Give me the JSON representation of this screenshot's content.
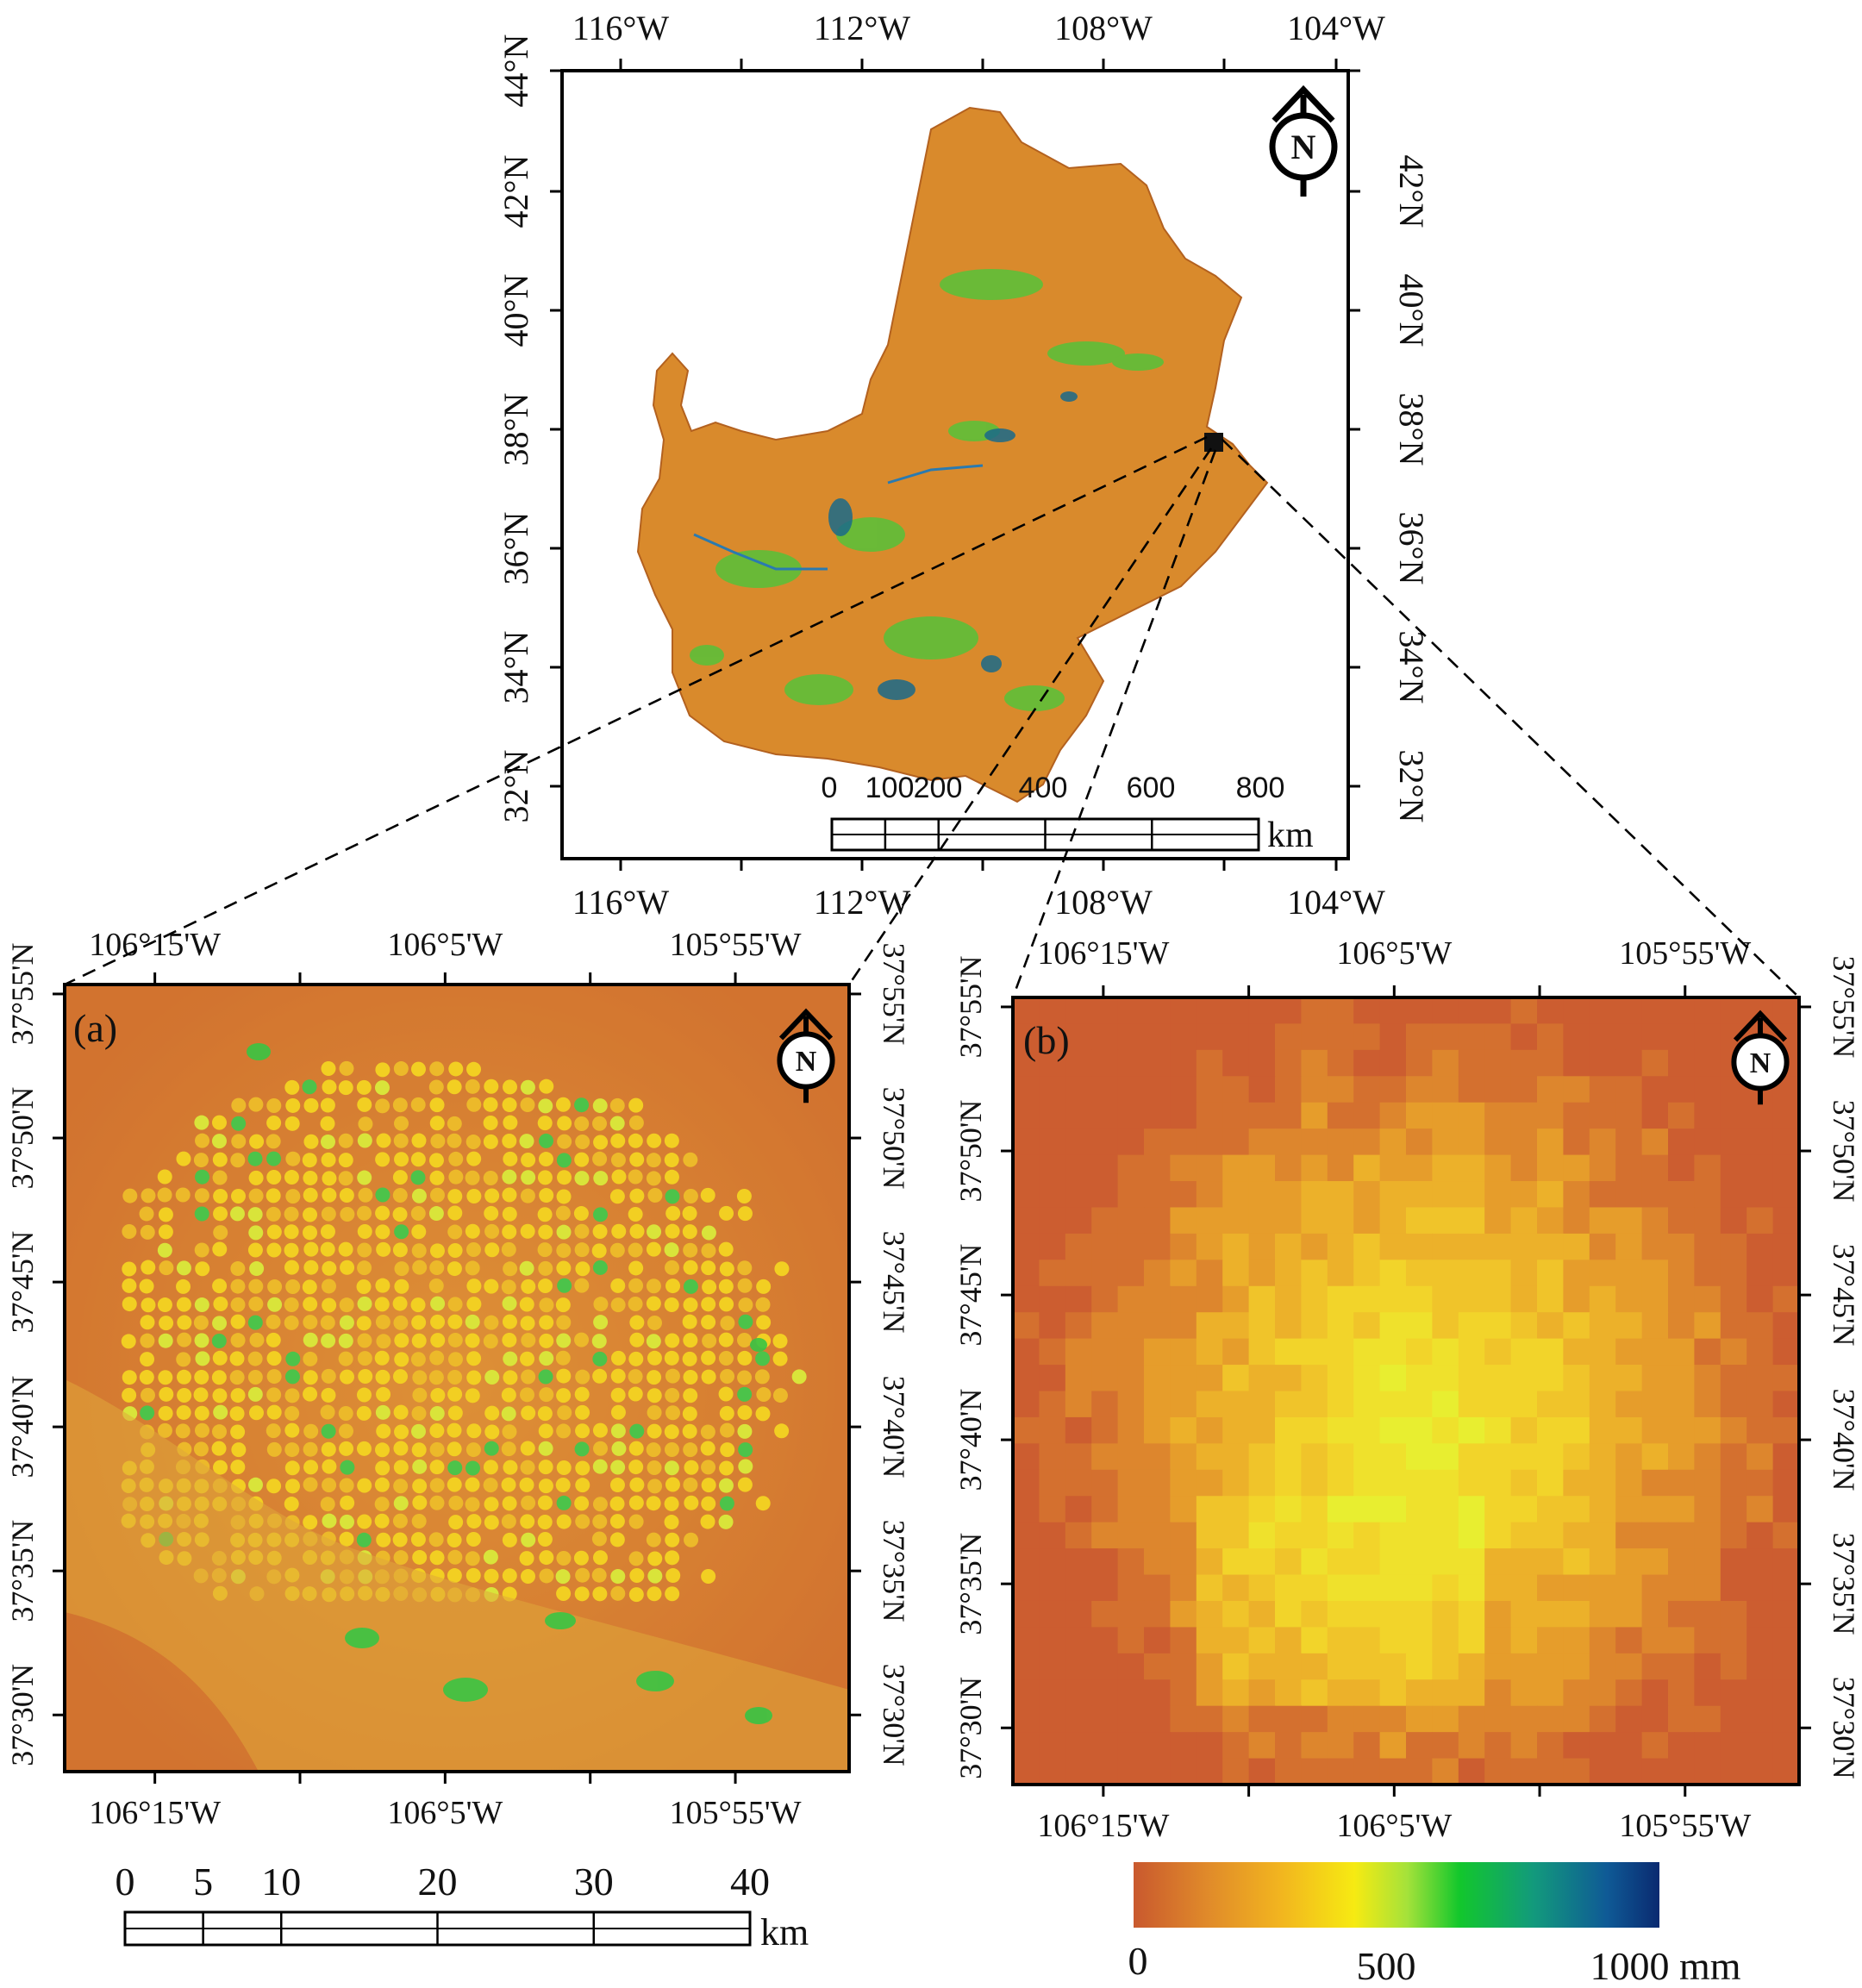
{
  "main_map": {
    "lon_labels": [
      "116°W",
      "112°W",
      "108°W",
      "104°W"
    ],
    "lat_labels": [
      "44°N",
      "42°N",
      "40°N",
      "38°N",
      "36°N",
      "34°N",
      "32°N"
    ],
    "north_letter": "N",
    "scalebar": {
      "ticks": [
        "0",
        "100",
        "200",
        "400",
        "600",
        "800"
      ],
      "unit": "km"
    }
  },
  "panel_a": {
    "label": "(a)",
    "lon_labels": [
      "106°15'W",
      "106°5'W",
      "105°55'W"
    ],
    "lat_labels": [
      "37°55'N",
      "37°50'N",
      "37°45'N",
      "37°40'N",
      "37°35'N",
      "37°30'N"
    ],
    "north_letter": "N"
  },
  "panel_b": {
    "label": "(b)",
    "lon_labels": [
      "106°15'W",
      "106°5'W",
      "105°55'W"
    ],
    "lat_labels": [
      "37°55'N",
      "37°50'N",
      "37°45'N",
      "37°40'N",
      "37°35'N",
      "37°30'N"
    ],
    "north_letter": "N"
  },
  "scalebar_bottom": {
    "ticks": [
      "0",
      "5",
      "10",
      "20",
      "30",
      "40"
    ],
    "unit": "km"
  },
  "colorbar": {
    "ticks": [
      "0",
      "500",
      "1000 mm"
    ],
    "colors": [
      "#c9592e",
      "#e08a2a",
      "#f2b51f",
      "#f6ea12",
      "#a5e23a",
      "#12c72c",
      "#129a7c",
      "#0f5a96",
      "#0a2a70"
    ]
  }
}
